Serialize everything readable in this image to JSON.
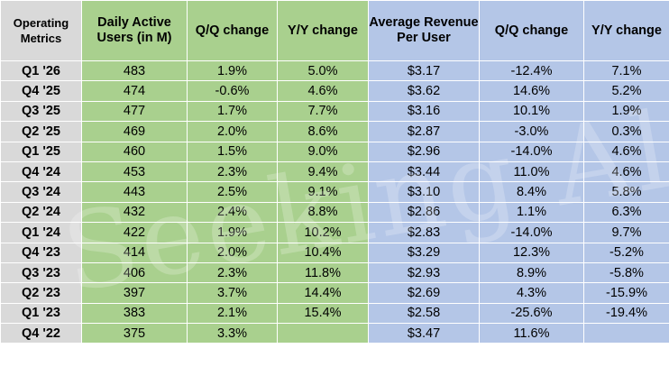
{
  "header": {
    "metrics": "Operating Metrics",
    "dau": "Daily Active Users (in M)",
    "dau_qq": "Q/Q change",
    "dau_yy": "Y/Y change",
    "arpu": "Average Revenue Per User",
    "arpu_qq": "Q/Q change",
    "arpu_yy": "Y/Y change"
  },
  "rows": [
    {
      "quarter": "Q1 '26",
      "dau": "483",
      "dau_qq": "1.9%",
      "dau_yy": "5.0%",
      "arpu": "$3.17",
      "arpu_qq": "-12.4%",
      "arpu_yy": "7.1%"
    },
    {
      "quarter": "Q4 '25",
      "dau": "474",
      "dau_qq": "-0.6%",
      "dau_yy": "4.6%",
      "arpu": "$3.62",
      "arpu_qq": "14.6%",
      "arpu_yy": "5.2%"
    },
    {
      "quarter": "Q3 '25",
      "dau": "477",
      "dau_qq": "1.7%",
      "dau_yy": "7.7%",
      "arpu": "$3.16",
      "arpu_qq": "10.1%",
      "arpu_yy": "1.9%"
    },
    {
      "quarter": "Q2 '25",
      "dau": "469",
      "dau_qq": "2.0%",
      "dau_yy": "8.6%",
      "arpu": "$2.87",
      "arpu_qq": "-3.0%",
      "arpu_yy": "0.3%"
    },
    {
      "quarter": "Q1 '25",
      "dau": "460",
      "dau_qq": "1.5%",
      "dau_yy": "9.0%",
      "arpu": "$2.96",
      "arpu_qq": "-14.0%",
      "arpu_yy": "4.6%"
    },
    {
      "quarter": "Q4 '24",
      "dau": "453",
      "dau_qq": "2.3%",
      "dau_yy": "9.4%",
      "arpu": "$3.44",
      "arpu_qq": "11.0%",
      "arpu_yy": "4.6%"
    },
    {
      "quarter": "Q3 '24",
      "dau": "443",
      "dau_qq": "2.5%",
      "dau_yy": "9.1%",
      "arpu": "$3.10",
      "arpu_qq": "8.4%",
      "arpu_yy": "5.8%"
    },
    {
      "quarter": "Q2 '24",
      "dau": "432",
      "dau_qq": "2.4%",
      "dau_yy": "8.8%",
      "arpu": "$2.86",
      "arpu_qq": "1.1%",
      "arpu_yy": "6.3%"
    },
    {
      "quarter": "Q1 '24",
      "dau": "422",
      "dau_qq": "1.9%",
      "dau_yy": "10.2%",
      "arpu": "$2.83",
      "arpu_qq": "-14.0%",
      "arpu_yy": "9.7%"
    },
    {
      "quarter": "Q4 '23",
      "dau": "414",
      "dau_qq": "2.0%",
      "dau_yy": "10.4%",
      "arpu": "$3.29",
      "arpu_qq": "12.3%",
      "arpu_yy": "-5.2%"
    },
    {
      "quarter": "Q3 '23",
      "dau": "406",
      "dau_qq": "2.3%",
      "dau_yy": "11.8%",
      "arpu": "$2.93",
      "arpu_qq": "8.9%",
      "arpu_yy": "-5.8%"
    },
    {
      "quarter": "Q2 '23",
      "dau": "397",
      "dau_qq": "3.7%",
      "dau_yy": "14.4%",
      "arpu": "$2.69",
      "arpu_qq": "4.3%",
      "arpu_yy": "-15.9%"
    },
    {
      "quarter": "Q1 '23",
      "dau": "383",
      "dau_qq": "2.1%",
      "dau_yy": "15.4%",
      "arpu": "$2.58",
      "arpu_qq": "-25.6%",
      "arpu_yy": "-19.4%"
    },
    {
      "quarter": "Q4 '22",
      "dau": "375",
      "dau_qq": "3.3%",
      "dau_yy": "",
      "arpu": "$3.47",
      "arpu_qq": "11.6%",
      "arpu_yy": ""
    }
  ],
  "watermark": "Seeking Alpha",
  "colors": {
    "label_bg": "#d9d9d9",
    "dau_bg": "#a9d08e",
    "arpu_bg": "#b4c6e7"
  }
}
